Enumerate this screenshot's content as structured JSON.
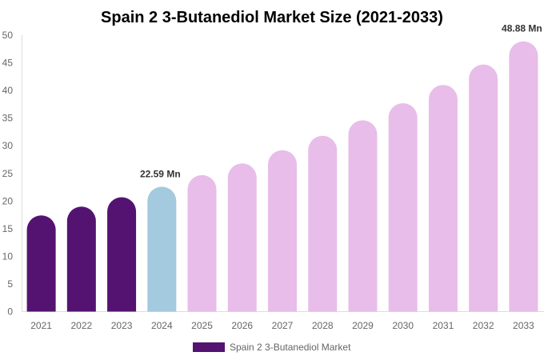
{
  "chart_data": {
    "type": "bar",
    "title": "Spain 2 3-Butanediol Market Size (2021-2033)",
    "xlabel": "",
    "ylabel": "",
    "ylim": [
      0,
      50
    ],
    "yticks": [
      "0",
      "5",
      "10",
      "15",
      "20",
      "25",
      "30",
      "35",
      "40",
      "45",
      "50"
    ],
    "categories": [
      "2021",
      "2022",
      "2023",
      "2024",
      "2025",
      "2026",
      "2027",
      "2028",
      "2029",
      "2030",
      "2031",
      "2032",
      "2033"
    ],
    "series": [
      {
        "name": "Spain 2 3-Butanediol Market",
        "values": [
          17.4,
          19.0,
          20.7,
          22.59,
          24.7,
          26.8,
          29.2,
          31.8,
          34.6,
          37.7,
          41.0,
          44.7,
          48.88
        ]
      }
    ],
    "bar_colors": [
      "#541371",
      "#541371",
      "#541371",
      "#a3cade",
      "#e8bde9",
      "#e8bde9",
      "#e8bde9",
      "#e8bde9",
      "#e8bde9",
      "#e8bde9",
      "#e8bde9",
      "#e8bde9",
      "#e8bde9"
    ],
    "data_labels": [
      {
        "index": 3,
        "text": "22.59 Mn"
      },
      {
        "index": 12,
        "text": "48.88 Mn"
      }
    ],
    "legend": {
      "label": "Spain 2 3-Butanediol Market",
      "color": "#541371",
      "position": "bottom"
    },
    "grid": false
  }
}
